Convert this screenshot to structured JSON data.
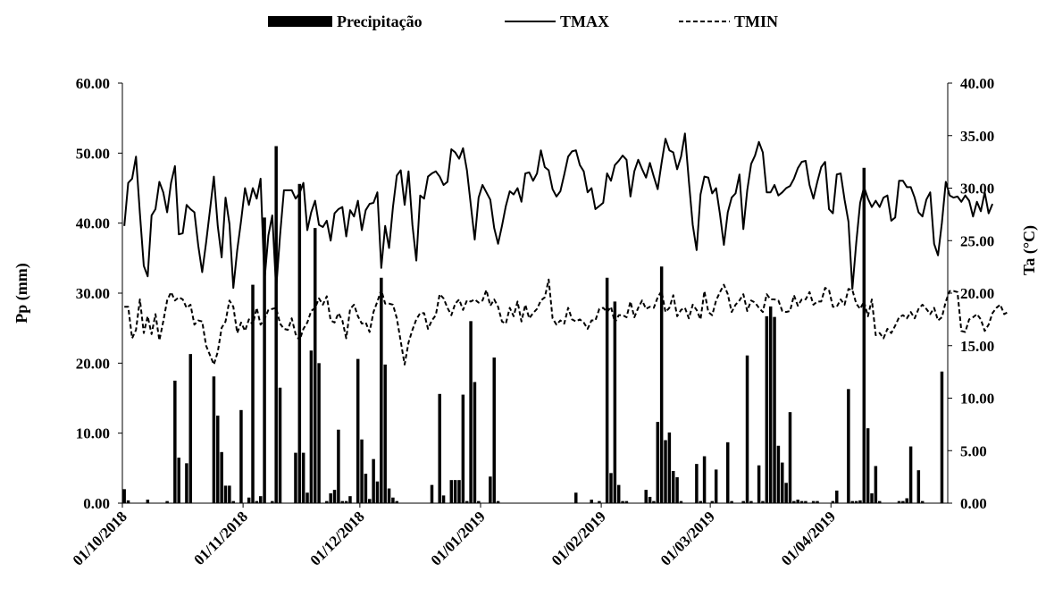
{
  "chart_data": {
    "type": "bar+line",
    "title": "",
    "xlabel": "",
    "ylabel_left": "Pp (mm)",
    "ylabel_right": "Ta (°C)",
    "ylim_left": [
      0,
      60
    ],
    "ylim_right": [
      0,
      40
    ],
    "xlim": [
      "2018-10-01",
      "2019-04-30"
    ],
    "grid": false,
    "legend_position": "top-center",
    "left_ticks": [
      "0.00",
      "10.00",
      "20.00",
      "30.00",
      "40.00",
      "50.00",
      "60.00"
    ],
    "right_ticks": [
      "0.00",
      "5.00",
      "10.00",
      "15.00",
      "20.00",
      "25.00",
      "30.00",
      "35.00",
      "40.00"
    ],
    "x_ticks": [
      "01/10/2018",
      "01/11/2018",
      "01/12/2018",
      "01/01/2019",
      "01/02/2019",
      "01/03/2019",
      "01/04/2019"
    ],
    "x_tick_dates": [
      "2018-10-01",
      "2018-11-01",
      "2018-12-01",
      "2019-01-01",
      "2019-02-01",
      "2019-03-01",
      "2019-04-01"
    ],
    "legend": [
      "Precipitação",
      "TMAX",
      "TMIN"
    ],
    "precipitation": {
      "name": "Precipitação",
      "axis": "left",
      "dates": [
        "2018-10-01",
        "2018-10-02",
        "2018-10-07",
        "2018-10-12",
        "2018-10-14",
        "2018-10-15",
        "2018-10-17",
        "2018-10-18",
        "2018-10-24",
        "2018-10-25",
        "2018-10-26",
        "2018-10-27",
        "2018-10-28",
        "2018-10-29",
        "2018-10-31",
        "2018-11-02",
        "2018-11-03",
        "2018-11-04",
        "2018-11-05",
        "2018-11-06",
        "2018-11-08",
        "2018-11-09",
        "2018-11-10",
        "2018-11-14",
        "2018-11-15",
        "2018-11-16",
        "2018-11-17",
        "2018-11-18",
        "2018-11-19",
        "2018-11-20",
        "2018-11-22",
        "2018-11-23",
        "2018-11-24",
        "2018-11-25",
        "2018-11-26",
        "2018-11-27",
        "2018-11-28",
        "2018-11-30",
        "2018-12-01",
        "2018-12-02",
        "2018-12-03",
        "2018-12-04",
        "2018-12-05",
        "2018-12-06",
        "2018-12-07",
        "2018-12-08",
        "2018-12-09",
        "2018-12-10",
        "2018-12-19",
        "2018-12-21",
        "2018-12-22",
        "2018-12-24",
        "2018-12-25",
        "2018-12-26",
        "2018-12-27",
        "2018-12-28",
        "2018-12-29",
        "2018-12-30",
        "2018-12-31",
        "2019-01-03",
        "2019-01-04",
        "2019-01-05",
        "2019-01-25",
        "2019-01-29",
        "2019-01-31",
        "2019-02-02",
        "2019-02-03",
        "2019-02-04",
        "2019-02-05",
        "2019-02-06",
        "2019-02-07",
        "2019-02-12",
        "2019-02-13",
        "2019-02-14",
        "2019-02-15",
        "2019-02-16",
        "2019-02-17",
        "2019-02-18",
        "2019-02-19",
        "2019-02-20",
        "2019-02-21",
        "2019-02-25",
        "2019-02-26",
        "2019-02-27",
        "2019-03-01",
        "2019-03-02",
        "2019-03-05",
        "2019-03-06",
        "2019-03-09",
        "2019-03-10",
        "2019-03-11",
        "2019-03-13",
        "2019-03-14",
        "2019-03-15",
        "2019-03-16",
        "2019-03-17",
        "2019-03-18",
        "2019-03-19",
        "2019-03-20",
        "2019-03-21",
        "2019-03-22",
        "2019-03-23",
        "2019-03-24",
        "2019-03-25",
        "2019-03-27",
        "2019-03-28",
        "2019-04-01",
        "2019-04-02",
        "2019-04-05",
        "2019-04-06",
        "2019-04-07",
        "2019-04-08",
        "2019-04-09",
        "2019-04-10",
        "2019-04-11",
        "2019-04-12",
        "2019-04-13",
        "2019-04-18",
        "2019-04-19",
        "2019-04-20",
        "2019-04-21",
        "2019-04-23",
        "2019-04-24",
        "2019-04-29"
      ],
      "values": [
        2.0,
        0.4,
        0.5,
        0.3,
        17.5,
        6.5,
        5.7,
        21.3,
        18.1,
        12.5,
        7.3,
        2.5,
        2.5,
        0.3,
        13.3,
        0.8,
        31.2,
        0.3,
        1.0,
        40.8,
        0.3,
        51.0,
        16.5,
        7.2,
        45.6,
        7.2,
        1.5,
        21.8,
        39.3,
        20.0,
        0.3,
        1.4,
        1.9,
        10.5,
        0.3,
        0.3,
        1.0,
        20.6,
        9.1,
        4.2,
        0.6,
        6.3,
        3.1,
        32.2,
        19.8,
        2.1,
        0.8,
        0.3,
        2.6,
        15.6,
        1.1,
        3.3,
        3.3,
        3.3,
        15.5,
        0.3,
        26.0,
        17.3,
        0.3,
        3.8,
        20.8,
        0.3,
        1.5,
        0.5,
        0.3,
        32.2,
        4.3,
        28.8,
        2.6,
        0.3,
        0.3,
        1.9,
        0.9,
        0.3,
        11.6,
        33.8,
        9.0,
        10.1,
        4.6,
        3.7,
        0.3,
        5.6,
        0.3,
        6.7,
        0.3,
        4.8,
        8.7,
        0.3,
        0.3,
        21.1,
        0.3,
        5.4,
        0.3,
        26.7,
        28.1,
        26.6,
        8.2,
        5.8,
        2.9,
        13.0,
        0.3,
        0.5,
        0.3,
        0.3,
        0.3,
        0.3,
        0.3,
        1.8,
        16.3,
        0.3,
        0.3,
        0.4,
        47.9,
        10.7,
        1.4,
        5.3,
        0.3,
        0.3,
        0.3,
        0.7,
        8.1,
        4.7,
        0.3,
        18.8
      ]
    },
    "series": [
      {
        "name": "TMAX",
        "axis": "right",
        "start_date": "2018-10-01",
        "values": [
          26.4,
          30.5,
          30.9,
          33.0,
          27.6,
          22.6,
          21.6,
          27.4,
          28.0,
          30.6,
          29.6,
          27.7,
          30.5,
          32.1,
          25.6,
          25.7,
          28.4,
          28.0,
          27.7,
          24.5,
          22.0,
          24.8,
          27.9,
          31.1,
          26.4,
          23.4,
          29.1,
          26.6,
          20.5,
          24.1,
          26.9,
          30.0,
          28.4,
          30.0,
          29.0,
          30.9,
          21.2,
          25.5,
          27.4,
          20.4,
          25.5,
          29.8,
          29.8,
          29.8,
          29.0,
          29.5,
          30.5,
          26.0,
          27.7,
          28.8,
          26.5,
          26.3,
          26.9,
          25.0,
          27.6,
          28.0,
          28.2,
          25.4,
          27.9,
          27.3,
          28.8,
          26.0,
          27.9,
          28.5,
          28.6,
          29.6,
          22.4,
          26.4,
          24.3,
          28.2,
          31.2,
          31.7,
          28.4,
          31.6,
          26.5,
          23.1,
          29.3,
          29.0,
          31.1,
          31.4,
          31.6,
          31.1,
          30.3,
          30.6,
          33.7,
          33.4,
          32.8,
          33.8,
          31.7,
          28.4,
          25.1,
          29.1,
          30.3,
          29.6,
          28.9,
          26.2,
          24.7,
          26.4,
          28.3,
          29.7,
          29.4,
          30.0,
          28.7,
          31.4,
          31.5,
          30.7,
          31.4,
          33.6,
          32.0,
          31.7,
          29.9,
          29.2,
          29.7,
          31.3,
          33.0,
          33.5,
          33.6,
          32.2,
          31.6,
          29.6,
          30.0,
          28.0,
          28.3,
          28.6,
          31.4,
          30.7,
          32.2,
          32.6,
          33.1,
          32.7,
          29.2,
          31.6,
          32.7,
          31.8,
          31.0,
          32.4,
          31.1,
          29.9,
          32.4,
          34.7,
          33.6,
          33.4,
          31.8,
          33.0,
          35.2,
          30.7,
          26.5,
          24.1,
          29.4,
          31.1,
          31.0,
          29.5,
          30.0,
          27.5,
          24.6,
          27.7,
          29.1,
          29.5,
          31.3,
          26.1,
          29.8,
          32.3,
          33.1,
          34.4,
          33.4,
          29.6,
          29.6,
          30.3,
          29.3,
          29.6,
          30.0,
          30.2,
          30.9,
          31.9,
          32.5,
          32.6,
          30.3,
          29.0,
          30.6,
          32.0,
          32.5,
          28.0,
          27.6,
          31.3,
          31.4,
          28.9,
          26.8,
          20.4,
          24.8,
          28.6,
          30.1,
          29.0,
          28.2,
          28.8,
          28.2,
          29.1,
          29.3,
          26.9,
          27.2,
          30.7,
          30.7,
          30.1,
          30.1,
          29.1,
          27.7,
          27.3,
          28.9,
          29.6,
          24.7,
          23.6,
          26.7,
          30.6,
          29.3,
          29.1,
          29.2,
          28.7,
          29.3,
          28.8,
          27.3,
          28.7,
          27.8,
          29.6,
          27.6,
          28.5
        ]
      },
      {
        "name": "TMIN",
        "axis": "right",
        "start_date": "2018-10-01",
        "values": [
          18.7,
          18.7,
          15.7,
          16.5,
          19.4,
          16.2,
          17.8,
          16.1,
          18.0,
          15.5,
          17.3,
          19.3,
          20.1,
          19.3,
          19.6,
          19.4,
          18.6,
          18.9,
          17.0,
          17.4,
          17.3,
          15.0,
          14.1,
          13.2,
          14.4,
          16.7,
          17.3,
          19.3,
          18.7,
          16.2,
          17.2,
          16.4,
          17.5,
          17.0,
          18.6,
          17.0,
          17.5,
          18.4,
          18.5,
          18.6,
          17.1,
          16.6,
          16.5,
          17.6,
          16.1,
          15.5,
          16.6,
          17.2,
          18.3,
          18.6,
          19.5,
          18.9,
          19.7,
          17.4,
          17.2,
          18.1,
          17.4,
          15.7,
          18.5,
          18.9,
          17.8,
          17.1,
          17.2,
          16.3,
          18.2,
          19.2,
          20.3,
          19.0,
          19.0,
          18.9,
          17.6,
          15.4,
          13.2,
          15.3,
          16.5,
          17.5,
          18.1,
          18.1,
          16.6,
          17.4,
          17.9,
          19.9,
          19.5,
          18.6,
          17.9,
          19.0,
          19.4,
          18.4,
          19.3,
          19.2,
          19.4,
          19.1,
          19.3,
          20.3,
          18.8,
          19.4,
          18.7,
          17.3,
          17.1,
          18.6,
          17.8,
          19.2,
          17.3,
          18.9,
          17.6,
          18.1,
          18.5,
          19.3,
          19.6,
          21.3,
          17.6,
          17.0,
          17.4,
          17.1,
          18.6,
          17.5,
          17.3,
          17.5,
          17.2,
          16.6,
          17.4,
          17.4,
          18.5,
          18.6,
          18.2,
          18.7,
          17.2,
          17.9,
          17.9,
          17.7,
          19.2,
          17.7,
          18.6,
          19.3,
          18.5,
          18.7,
          18.6,
          19.6,
          20.2,
          18.2,
          18.6,
          19.8,
          17.8,
          18.4,
          18.6,
          17.6,
          18.9,
          18.4,
          17.5,
          20.2,
          18.2,
          17.9,
          19.3,
          20.1,
          20.8,
          19.9,
          18.2,
          18.9,
          19.3,
          19.9,
          18.3,
          19.3,
          19.1,
          18.6,
          18.2,
          19.9,
          19.4,
          19.4,
          19.3,
          18.3,
          18.2,
          18.3,
          19.8,
          18.8,
          19.4,
          19.4,
          20.1,
          18.9,
          19.2,
          19.2,
          20.5,
          20.3,
          18.7,
          18.7,
          19.4,
          18.9,
          20.4,
          20.3,
          19.0,
          18.5,
          19.2,
          17.8,
          19.4,
          16.0,
          16.2,
          15.7,
          16.6,
          16.2,
          16.9,
          17.7,
          17.9,
          17.6,
          18.2,
          17.6,
          18.5,
          18.9,
          18.5,
          18.0,
          18.6,
          17.4,
          17.7,
          19.2,
          20.2,
          20.2,
          20.1,
          16.4,
          16.3,
          17.5,
          17.7,
          18.0,
          17.5,
          16.4,
          17.0,
          18.1,
          18.6,
          18.9,
          18.0,
          18.2
        ]
      }
    ]
  }
}
